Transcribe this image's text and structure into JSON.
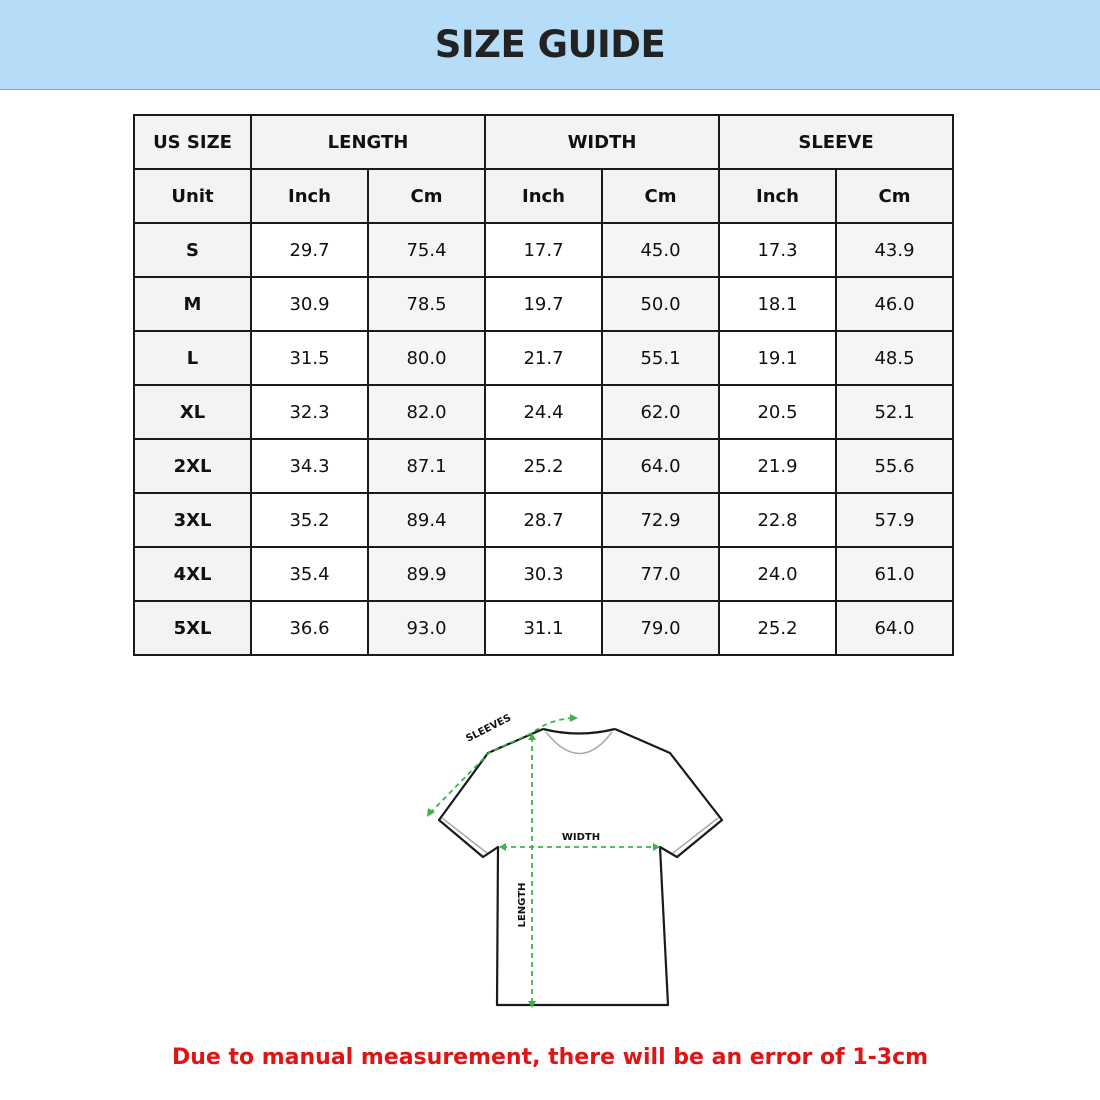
{
  "title": "SIZE GUIDE",
  "table": {
    "group_headers": [
      "US SIZE",
      "LENGTH",
      "WIDTH",
      "SLEEVE"
    ],
    "unit_label": "Unit",
    "units": [
      "Inch",
      "Cm",
      "Inch",
      "Cm",
      "Inch",
      "Cm"
    ],
    "rows": [
      {
        "size": "S",
        "values": [
          "29.7",
          "75.4",
          "17.7",
          "45.0",
          "17.3",
          "43.9"
        ]
      },
      {
        "size": "M",
        "values": [
          "30.9",
          "78.5",
          "19.7",
          "50.0",
          "18.1",
          "46.0"
        ]
      },
      {
        "size": "L",
        "values": [
          "31.5",
          "80.0",
          "21.7",
          "55.1",
          "19.1",
          "48.5"
        ]
      },
      {
        "size": "XL",
        "values": [
          "32.3",
          "82.0",
          "24.4",
          "62.0",
          "20.5",
          "52.1"
        ]
      },
      {
        "size": "2XL",
        "values": [
          "34.3",
          "87.1",
          "25.2",
          "64.0",
          "21.9",
          "55.6"
        ]
      },
      {
        "size": "3XL",
        "values": [
          "35.2",
          "89.4",
          "28.7",
          "72.9",
          "22.8",
          "57.9"
        ]
      },
      {
        "size": "4XL",
        "values": [
          "35.4",
          "89.9",
          "30.3",
          "77.0",
          "24.0",
          "61.0"
        ]
      },
      {
        "size": "5XL",
        "values": [
          "36.6",
          "93.0",
          "31.1",
          "79.0",
          "25.2",
          "64.0"
        ]
      }
    ]
  },
  "diagram": {
    "sleeves_label": "SLEEVES",
    "width_label": "WIDTH",
    "length_label": "LENGTH",
    "measure_color": "#3cb44b"
  },
  "note": "Due to manual measurement, there will be an error of 1-3cm",
  "colors": {
    "header_bg": "#b5ddf8",
    "note": "#e01414"
  }
}
